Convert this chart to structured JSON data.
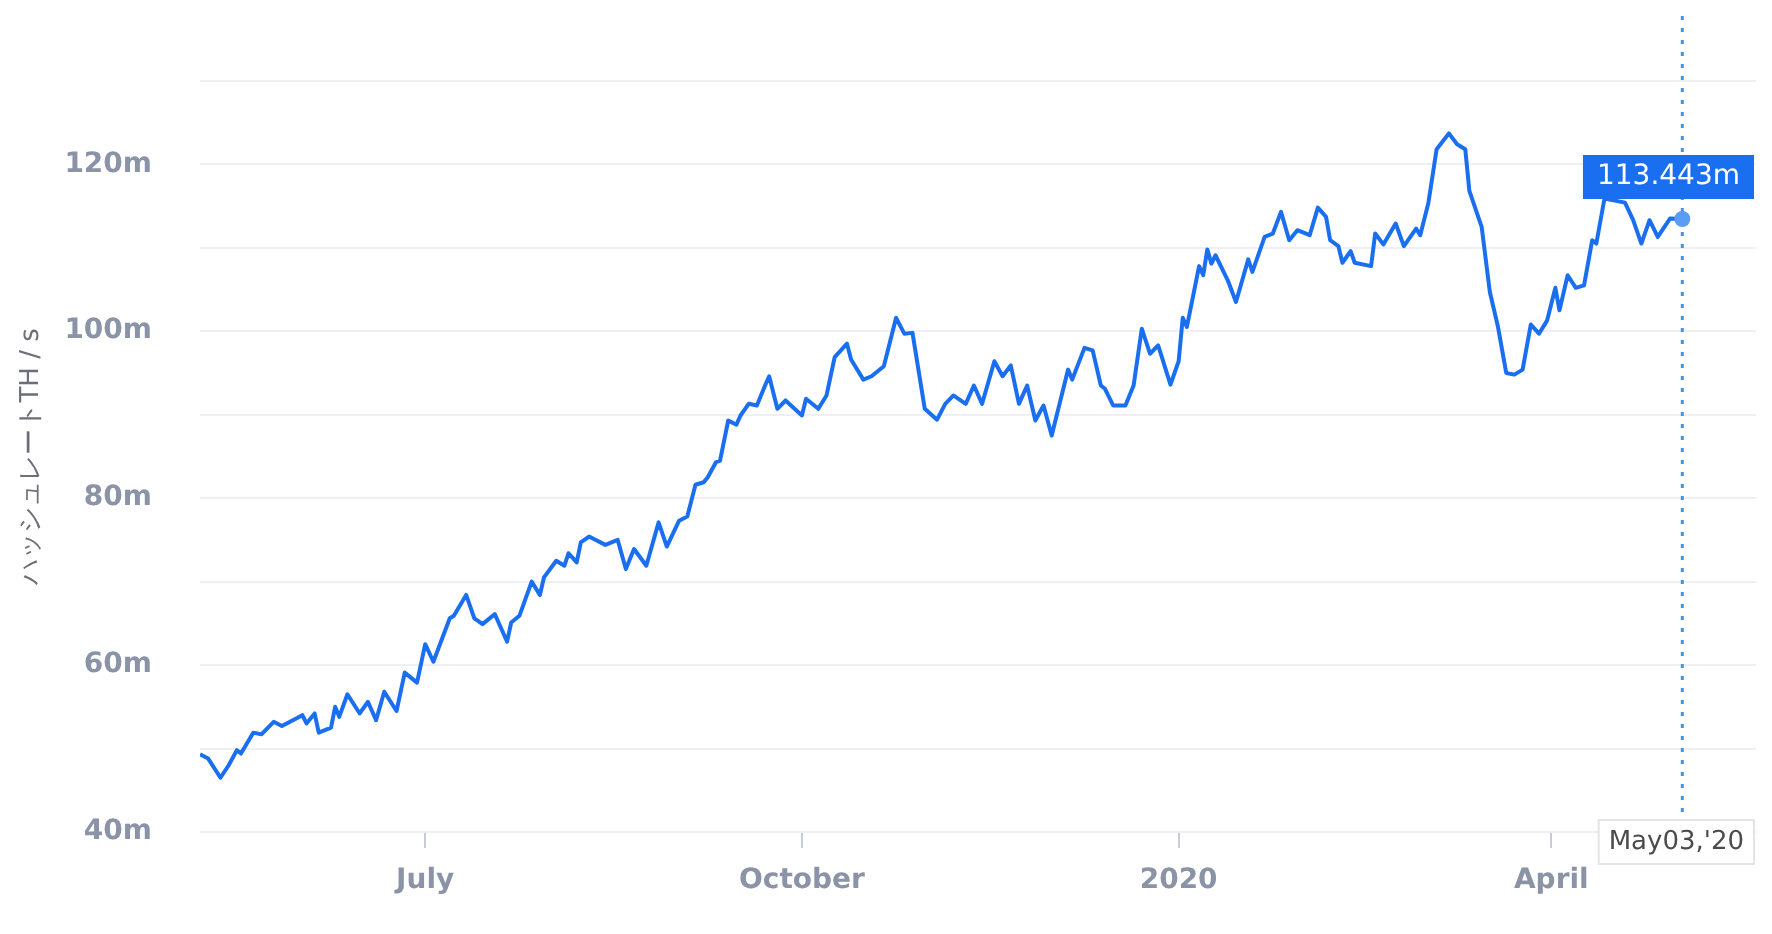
{
  "chart_data": {
    "type": "line",
    "ylabel": "ハッシュレートTH / s",
    "color": "#1a6ff0",
    "grid": "y",
    "x": [
      "2019-05-07",
      "2019-05-09",
      "2019-05-12",
      "2019-05-14",
      "2019-05-16",
      "2019-05-17",
      "2019-05-20",
      "2019-05-22",
      "2019-05-25",
      "2019-05-27",
      "2019-06-01",
      "2019-06-02",
      "2019-06-04",
      "2019-06-05",
      "2019-06-08",
      "2019-06-09",
      "2019-06-10",
      "2019-06-12",
      "2019-06-15",
      "2019-06-17",
      "2019-06-19",
      "2019-06-21",
      "2019-06-24",
      "2019-06-26",
      "2019-06-29",
      "2019-07-01",
      "2019-07-03",
      "2019-07-07",
      "2019-07-08",
      "2019-07-11",
      "2019-07-13",
      "2019-07-15",
      "2019-07-18",
      "2019-07-21",
      "2019-07-22",
      "2019-07-24",
      "2019-07-27",
      "2019-07-29",
      "2019-07-30",
      "2019-08-02",
      "2019-08-04",
      "2019-08-05",
      "2019-08-07",
      "2019-08-08",
      "2019-08-10",
      "2019-08-14",
      "2019-08-17",
      "2019-08-19",
      "2019-08-21",
      "2019-08-24",
      "2019-08-27",
      "2019-08-29",
      "2019-09-01",
      "2019-09-03",
      "2019-09-05",
      "2019-09-07",
      "2019-09-08",
      "2019-09-10",
      "2019-09-11",
      "2019-09-13",
      "2019-09-15",
      "2019-09-16",
      "2019-09-18",
      "2019-09-20",
      "2019-09-22",
      "2019-09-23",
      "2019-09-25",
      "2019-09-27",
      "2019-10-01",
      "2019-10-02",
      "2019-10-05",
      "2019-10-07",
      "2019-10-09",
      "2019-10-12",
      "2019-10-13",
      "2019-10-16",
      "2019-10-18",
      "2019-10-21",
      "2019-10-24",
      "2019-10-26",
      "2019-10-28",
      "2019-10-31",
      "2019-11-03",
      "2019-11-05",
      "2019-11-07",
      "2019-11-10",
      "2019-11-12",
      "2019-11-14",
      "2019-11-17",
      "2019-11-19",
      "2019-11-21",
      "2019-11-23",
      "2019-11-25",
      "2019-11-27",
      "2019-11-29",
      "2019-12-01",
      "2019-12-05",
      "2019-12-06",
      "2019-12-09",
      "2019-12-11",
      "2019-12-13",
      "2019-12-14",
      "2019-12-16",
      "2019-12-19",
      "2019-12-21",
      "2019-12-23",
      "2019-12-25",
      "2019-12-27",
      "2019-12-30",
      "2020-01-01",
      "2020-01-02",
      "2020-01-03",
      "2020-01-06",
      "2020-01-07",
      "2020-01-08",
      "2020-01-09",
      "2020-01-10",
      "2020-01-13",
      "2020-01-15",
      "2020-01-18",
      "2020-01-19",
      "2020-01-22",
      "2020-01-24",
      "2020-01-26",
      "2020-01-28",
      "2020-01-30",
      "2020-02-02",
      "2020-02-04",
      "2020-02-06",
      "2020-02-07",
      "2020-02-09",
      "2020-02-10",
      "2020-02-12",
      "2020-02-13",
      "2020-02-17",
      "2020-02-18",
      "2020-02-20",
      "2020-02-23",
      "2020-02-25",
      "2020-02-28",
      "2020-02-29",
      "2020-03-02",
      "2020-03-04",
      "2020-03-07",
      "2020-03-09",
      "2020-03-11",
      "2020-03-12",
      "2020-03-15",
      "2020-03-17",
      "2020-03-19",
      "2020-03-21",
      "2020-03-23",
      "2020-03-25",
      "2020-03-27",
      "2020-03-29",
      "2020-03-31",
      "2020-04-02",
      "2020-04-03",
      "2020-04-05",
      "2020-04-07",
      "2020-04-09",
      "2020-04-11",
      "2020-04-12",
      "2020-04-14",
      "2020-04-19",
      "2020-04-21",
      "2020-04-23",
      "2020-04-25",
      "2020-04-27",
      "2020-04-30",
      "2020-05-03"
    ],
    "values": [
      49.3,
      48.8,
      46.5,
      48,
      49.8,
      49.4,
      51.9,
      51.7,
      53.2,
      52.7,
      54,
      53,
      54.2,
      51.9,
      52.5,
      55,
      53.8,
      56.5,
      54.2,
      55.6,
      53.4,
      56.8,
      54.5,
      59.1,
      57.9,
      62.5,
      60.4,
      65.6,
      65.9,
      68.4,
      65.6,
      64.9,
      66.1,
      62.8,
      65.1,
      65.9,
      70,
      68.4,
      70.5,
      72.5,
      71.9,
      73.4,
      72.3,
      74.7,
      75.4,
      74.4,
      75,
      71.5,
      73.9,
      71.9,
      77.1,
      74.2,
      77.3,
      77.8,
      81.6,
      81.9,
      82.5,
      84.3,
      84.5,
      89.3,
      88.8,
      89.9,
      91.3,
      91.1,
      93.5,
      94.6,
      90.7,
      91.7,
      89.9,
      91.9,
      90.7,
      92.3,
      96.9,
      98.5,
      96.6,
      94.2,
      94.6,
      95.8,
      101.6,
      99.7,
      99.8,
      90.7,
      89.4,
      91.3,
      92.3,
      91.3,
      93.5,
      91.3,
      96.4,
      94.6,
      95.9,
      91.3,
      93.5,
      89.3,
      91.1,
      87.5,
      95.4,
      94.2,
      98,
      97.7,
      93.5,
      93.1,
      91.1,
      91.1,
      93.5,
      100.3,
      97.3,
      98.3,
      93.6,
      96.4,
      101.6,
      100.5,
      107.8,
      106.7,
      109.8,
      108.1,
      109.1,
      106.1,
      103.5,
      108.6,
      107.1,
      111.3,
      111.7,
      114.3,
      110.9,
      112.1,
      111.5,
      114.8,
      113.7,
      110.9,
      110.2,
      108.2,
      109.6,
      108.2,
      107.8,
      111.7,
      110.4,
      112.9,
      110.2,
      112.3,
      111.5,
      115.4,
      121.8,
      123.7,
      122.4,
      121.8,
      116.8,
      112.5,
      104.7,
      100.5,
      95,
      94.8,
      95.4,
      100.8,
      99.7,
      101.3,
      105.2,
      102.5,
      106.7,
      105.2,
      105.5,
      110.9,
      110.5,
      115.9,
      115.4,
      113.3,
      110.5,
      113.3,
      111.3,
      113.5,
      113.443
    ],
    "xlim": [
      "2019-05-07",
      "2020-05-21"
    ],
    "xticks": [
      {
        "value": "2019-07-01",
        "label": "July"
      },
      {
        "value": "2019-10-01",
        "label": "October"
      },
      {
        "value": "2020-01-01",
        "label": "2020"
      },
      {
        "value": "2020-04-01",
        "label": "April"
      }
    ],
    "ylim": [
      40,
      130
    ],
    "yticks": [
      {
        "value": 40,
        "label": "40m"
      },
      {
        "value": 50,
        "label": null
      },
      {
        "value": 60,
        "label": "60m"
      },
      {
        "value": 70,
        "label": null
      },
      {
        "value": 80,
        "label": "80m"
      },
      {
        "value": 90,
        "label": null
      },
      {
        "value": 100,
        "label": "100m"
      },
      {
        "value": 110,
        "label": null
      },
      {
        "value": 120,
        "label": "120m"
      },
      {
        "value": 130,
        "label": null
      }
    ],
    "ref_lines": [
      {
        "axis": "x",
        "value": "2020-05-03",
        "label": "May03,'20",
        "color": "#4a8ef0",
        "line_style": "dotted"
      }
    ],
    "annotations": [
      {
        "text": "113.443m",
        "x": "2020-05-03",
        "y": 113.443
      }
    ]
  }
}
